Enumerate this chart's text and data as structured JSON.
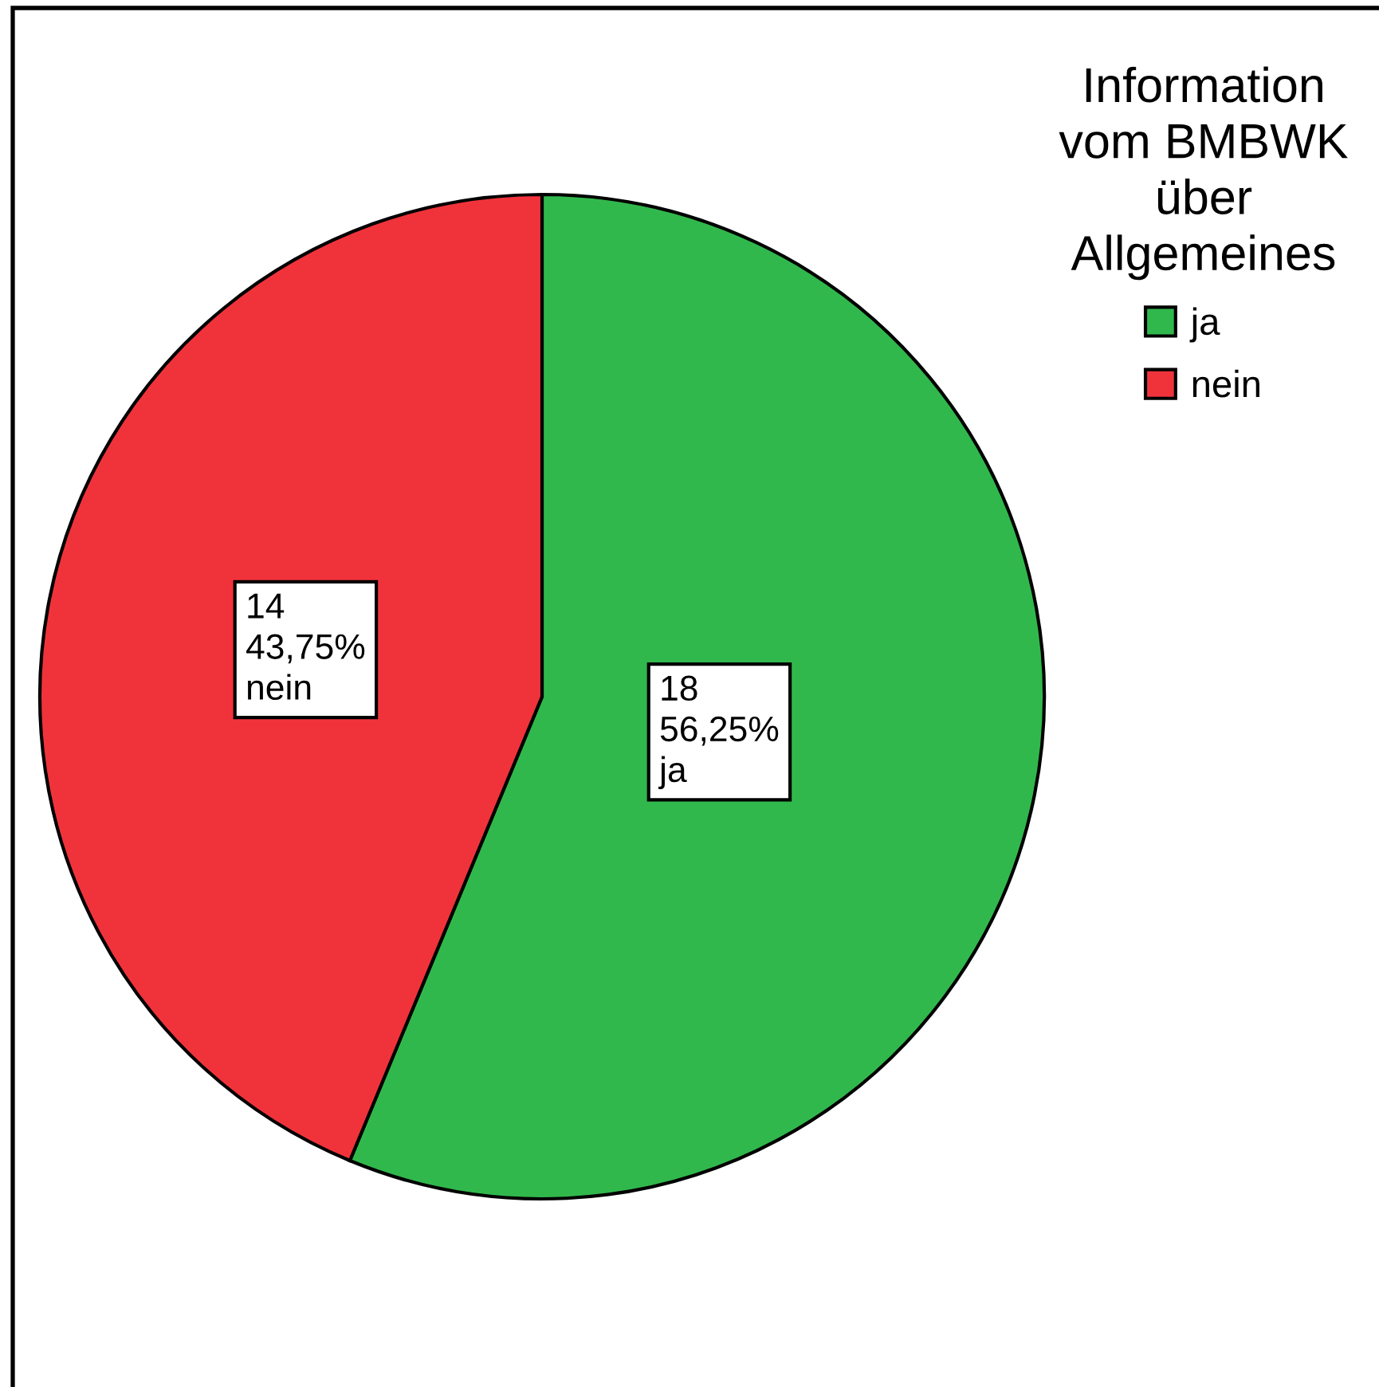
{
  "chart_data": {
    "type": "pie",
    "legend_title": "Information\nvom BMBWK\nüber\nAllgemeines",
    "categories": [
      "ja",
      "nein"
    ],
    "values": [
      18,
      14
    ],
    "colors": [
      "#31b84c",
      "#f0333b"
    ],
    "value_labels": [
      "18\n56,25%\nja",
      "14\n43,75%\nnein"
    ],
    "legend": "top right"
  }
}
